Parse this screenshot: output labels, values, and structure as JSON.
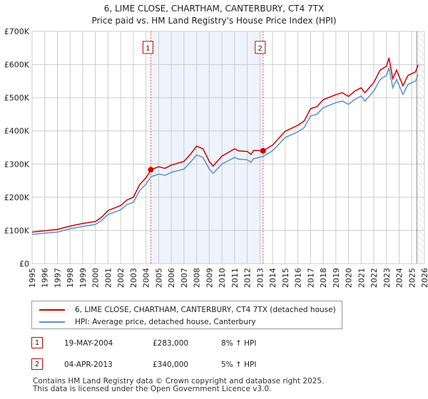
{
  "chart_data": {
    "type": "line",
    "title": "6, LIME CLOSE, CHARTHAM, CANTERBURY, CT4 7TX",
    "subtitle": "Price paid vs. HM Land Registry's House Price Index (HPI)",
    "xlim": [
      1995,
      2026
    ],
    "ylim": [
      0,
      700
    ],
    "x_ticks": [
      "1995",
      "1996",
      "1997",
      "1998",
      "1999",
      "2000",
      "2001",
      "2002",
      "2003",
      "2004",
      "2005",
      "2006",
      "2007",
      "2008",
      "2009",
      "2010",
      "2011",
      "2012",
      "2013",
      "2014",
      "2015",
      "2016",
      "2017",
      "2018",
      "2019",
      "2020",
      "2021",
      "2022",
      "2023",
      "2024",
      "2025",
      "2026"
    ],
    "y_ticks": [
      {
        "v": 0,
        "label": "£0"
      },
      {
        "v": 100,
        "label": "£100K"
      },
      {
        "v": 200,
        "label": "£200K"
      },
      {
        "v": 300,
        "label": "£300K"
      },
      {
        "v": 400,
        "label": "£400K"
      },
      {
        "v": 500,
        "label": "£500K"
      },
      {
        "v": 600,
        "label": "£600K"
      },
      {
        "v": 700,
        "label": "£700K"
      }
    ],
    "grid": true,
    "x": [
      1995,
      1996,
      1997,
      1998,
      1999,
      2000,
      2000.5,
      2001,
      2002,
      2002.5,
      2003,
      2003.5,
      2004,
      2004.4,
      2005,
      2005.5,
      2006,
      2007,
      2007.5,
      2008,
      2008.5,
      2009,
      2009.3,
      2010,
      2010.5,
      2011,
      2011.3,
      2012,
      2012.3,
      2012.5,
      2013.25,
      2014,
      2015,
      2016,
      2016.5,
      2017,
      2017.5,
      2018,
      2019,
      2019.5,
      2020,
      2020.5,
      2021,
      2021.3,
      2022,
      2022.5,
      2023,
      2023.2,
      2023.5,
      2023.8,
      2024.3,
      2024.7,
      2025.3,
      2025.5
    ],
    "series": [
      {
        "name": "6, LIME CLOSE, CHARTHAM, CANTERBURY, CT4 7TX (detached house)",
        "color": "#cc0000",
        "values": [
          95,
          99,
          103,
          113,
          121,
          127,
          140,
          160,
          175,
          192,
          200,
          238,
          259,
          283,
          292,
          287,
          297,
          308,
          329,
          354,
          346,
          308,
          294,
          324,
          335,
          346,
          340,
          338,
          329,
          341,
          340,
          357,
          399,
          417,
          430,
          467,
          473,
          494,
          509,
          515,
          504,
          520,
          530,
          515,
          546,
          583,
          595,
          620,
          557,
          583,
          536,
          567,
          578,
          599
        ]
      },
      {
        "name": "HPI: Average price, detached house, Canterbury",
        "color": "#5b8fd0",
        "values": [
          88,
          92,
          95,
          105,
          112,
          118,
          130,
          148,
          162,
          178,
          185,
          220,
          240,
          262,
          270,
          266,
          275,
          285,
          305,
          328,
          320,
          285,
          272,
          300,
          310,
          320,
          315,
          313,
          305,
          316,
          323,
          340,
          380,
          397,
          410,
          445,
          450,
          470,
          485,
          490,
          480,
          495,
          505,
          490,
          520,
          555,
          567,
          590,
          530,
          555,
          510,
          540,
          550,
          570
        ]
      }
    ],
    "sales": [
      {
        "label": "1",
        "x": 2004.38,
        "y": 283
      },
      {
        "label": "2",
        "x": 2013.25,
        "y": 340
      }
    ],
    "shaded_range": [
      2004.38,
      2013.25
    ],
    "forecast_from": 2025.4,
    "legend_placement": "bottom"
  },
  "table": [
    {
      "num": "1",
      "date": "19-MAY-2004",
      "price": "£283,000",
      "hpi": "8% ↑ HPI"
    },
    {
      "num": "2",
      "date": "04-APR-2013",
      "price": "£340,000",
      "hpi": "5% ↑ HPI"
    }
  ],
  "footer": [
    "Contains HM Land Registry data © Crown copyright and database right 2025.",
    "This data is licensed under the Open Government Licence v3.0."
  ]
}
